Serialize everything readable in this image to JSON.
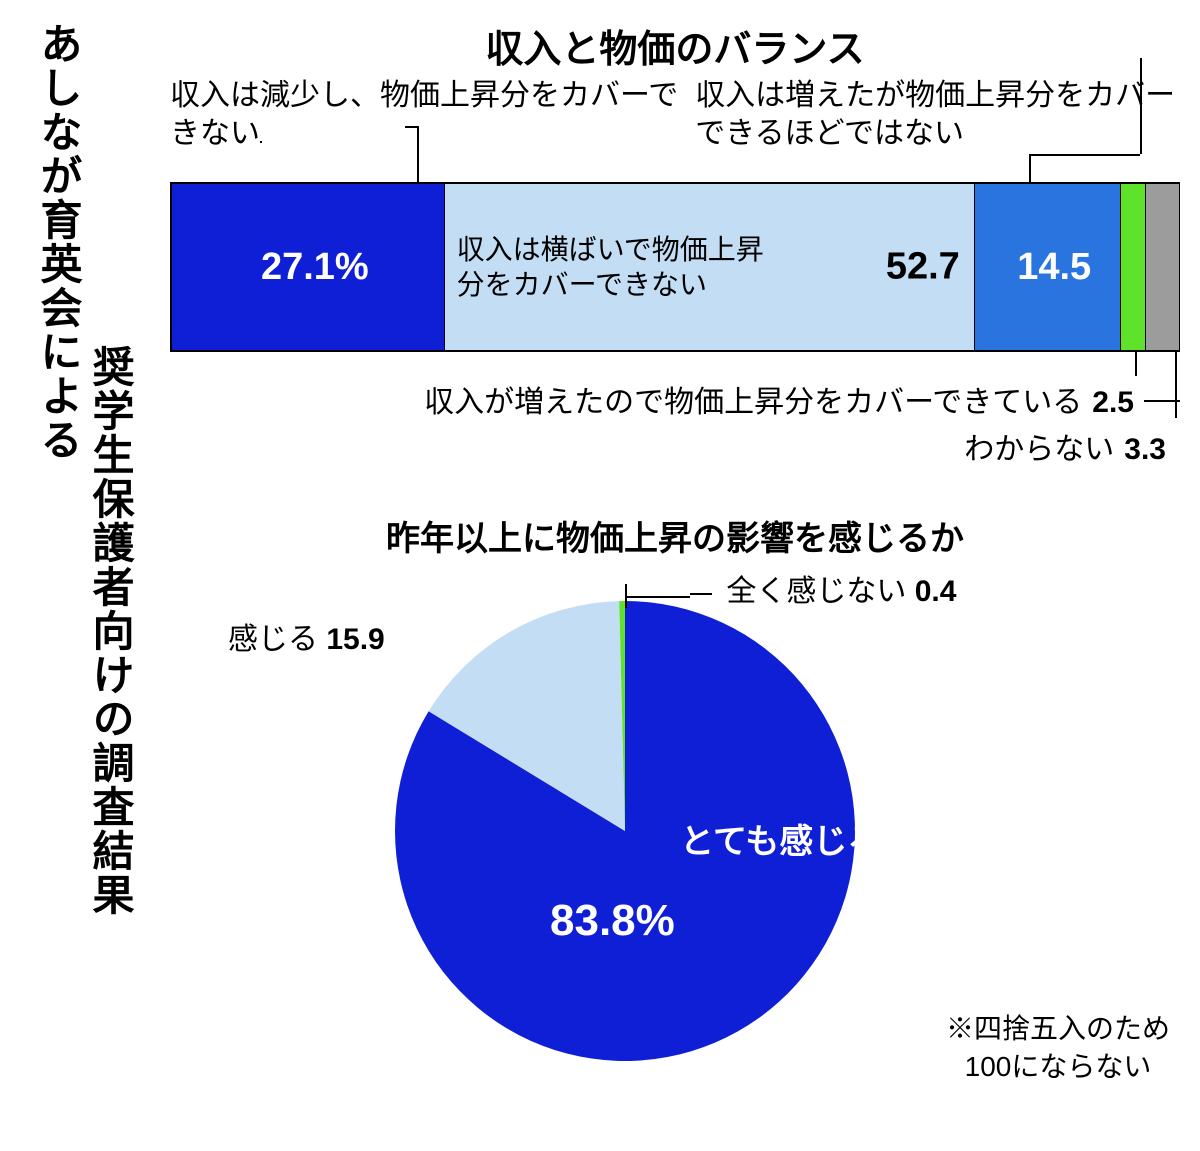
{
  "title_vertical_main": "あしなが育英会による",
  "title_vertical_sub": "奨学生保護者向けの調査結果",
  "bar_chart": {
    "type": "stacked-bar-horizontal",
    "title": "収入と物価のバランス",
    "border_color": "#000000",
    "background_color": "#ffffff",
    "label_fontsize": 30,
    "value_fontsize": 38,
    "segments": [
      {
        "label": "収入は減少し、物価上昇分をカバーできない",
        "value": 27.1,
        "display": "27.1%",
        "color": "#0f1fd6",
        "text_color": "#ffffff",
        "label_pos": "above-left"
      },
      {
        "label": "収入は横ばいで物価上昇分をカバーできない",
        "value": 52.7,
        "display": "52.7",
        "color": "#c3ddf4",
        "text_color": "#000000",
        "label_pos": "inside"
      },
      {
        "label": "収入は増えたが物価上昇分をカバーできるほどではない",
        "value": 14.5,
        "display": "14.5",
        "color": "#2a74e0",
        "text_color": "#ffffff",
        "label_pos": "above-right"
      },
      {
        "label": "収入が増えたので物価上昇分をカバーできている",
        "value": 2.5,
        "display": "2.5",
        "color": "#5fe22a",
        "text_color": "#000000",
        "label_pos": "below"
      },
      {
        "label": "わからない",
        "value": 3.3,
        "display": "3.3",
        "color": "#9c9c9c",
        "text_color": "#000000",
        "label_pos": "below"
      }
    ]
  },
  "pie_chart": {
    "type": "pie",
    "title": "昨年以上に物価上昇の影響を感じるか",
    "radius": 230,
    "start_angle": -90,
    "background_color": "#ffffff",
    "slices": [
      {
        "label": "とても感じる",
        "value": 83.8,
        "display": "83.8%",
        "color": "#0f1fd6",
        "text_color": "#ffffff"
      },
      {
        "label": "感じる",
        "value": 15.9,
        "display": "15.9",
        "color": "#c3ddf4",
        "text_color": "#000000"
      },
      {
        "label": "全く感じない",
        "value": 0.4,
        "display": "0.4",
        "color": "#5fe22a",
        "text_color": "#000000"
      }
    ]
  },
  "footnote_line1": "※四捨五入のため",
  "footnote_line2": "100にならない"
}
